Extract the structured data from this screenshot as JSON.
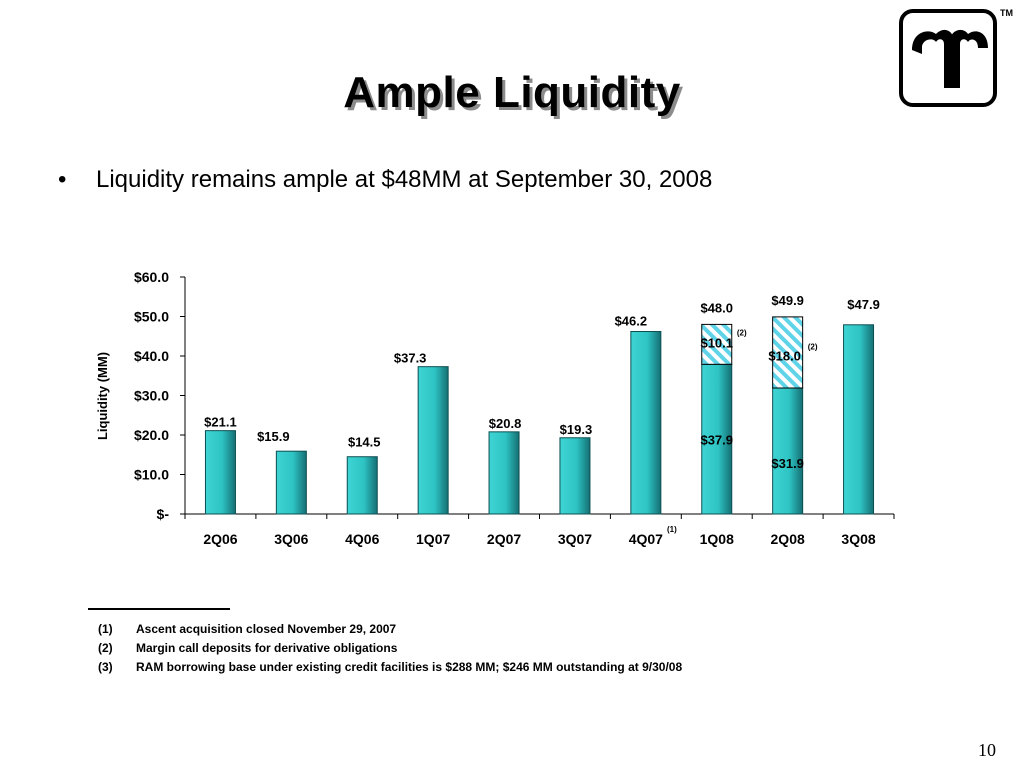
{
  "slide": {
    "title": "Ample Liquidity",
    "trademark": "TM",
    "bullet": "Liquidity remains ample at $48MM at September 30, 2008",
    "bullet_symbol": "•",
    "page_number": "10",
    "logo_icon": "company-logo-icon"
  },
  "footnotes": [
    {
      "num": "(1)",
      "text": "Ascent acquisition closed November 29, 2007"
    },
    {
      "num": "(2)",
      "text": "Margin call deposits for derivative obligations"
    },
    {
      "num": "(3)",
      "text": "RAM borrowing base under existing credit facilities is $288 MM; $246 MM outstanding at 9/30/08"
    }
  ],
  "chart_data": {
    "type": "bar",
    "stacked": true,
    "ylabel": "Liquidity (MM)",
    "ylim": [
      0,
      60
    ],
    "yticks": [
      0,
      10,
      20,
      30,
      40,
      50,
      60
    ],
    "ytick_labels": [
      "$-",
      "$10.0",
      "$20.0",
      "$30.0",
      "$40.0",
      "$50.0",
      "$60.0"
    ],
    "categories": [
      "2Q06",
      "3Q06",
      "4Q06",
      "1Q07",
      "2Q07",
      "3Q07",
      "4Q07",
      "1Q08",
      "2Q08",
      "3Q08"
    ],
    "category_superscripts": [
      "",
      "",
      "",
      "",
      "",
      "",
      "(1)",
      "",
      "",
      ""
    ],
    "series": [
      {
        "values": [
          21.1,
          15.9,
          14.5,
          37.3,
          20.8,
          19.3,
          46.2,
          37.9,
          31.9,
          47.9
        ],
        "color": "#2ec4c4",
        "pattern": "solid"
      },
      {
        "values": [
          0,
          0,
          0,
          0,
          0,
          0,
          0,
          10.1,
          18.0,
          0
        ],
        "color": "#5fd3e8",
        "pattern": "hatched"
      }
    ],
    "total_labels": [
      "$21.1",
      "$15.9",
      "$14.5",
      "$37.3",
      "$20.8",
      "$19.3",
      "$46.2",
      "$48.0",
      "$49.9",
      "$47.9"
    ],
    "segment_labels": [
      {
        "index": 7,
        "base": "$37.9",
        "top": "$10.1",
        "top_superscript": "(2)"
      },
      {
        "index": 8,
        "base": "$31.9",
        "top": "$18.0",
        "top_superscript": "(2)"
      }
    ],
    "grid": false,
    "legend": "none"
  }
}
